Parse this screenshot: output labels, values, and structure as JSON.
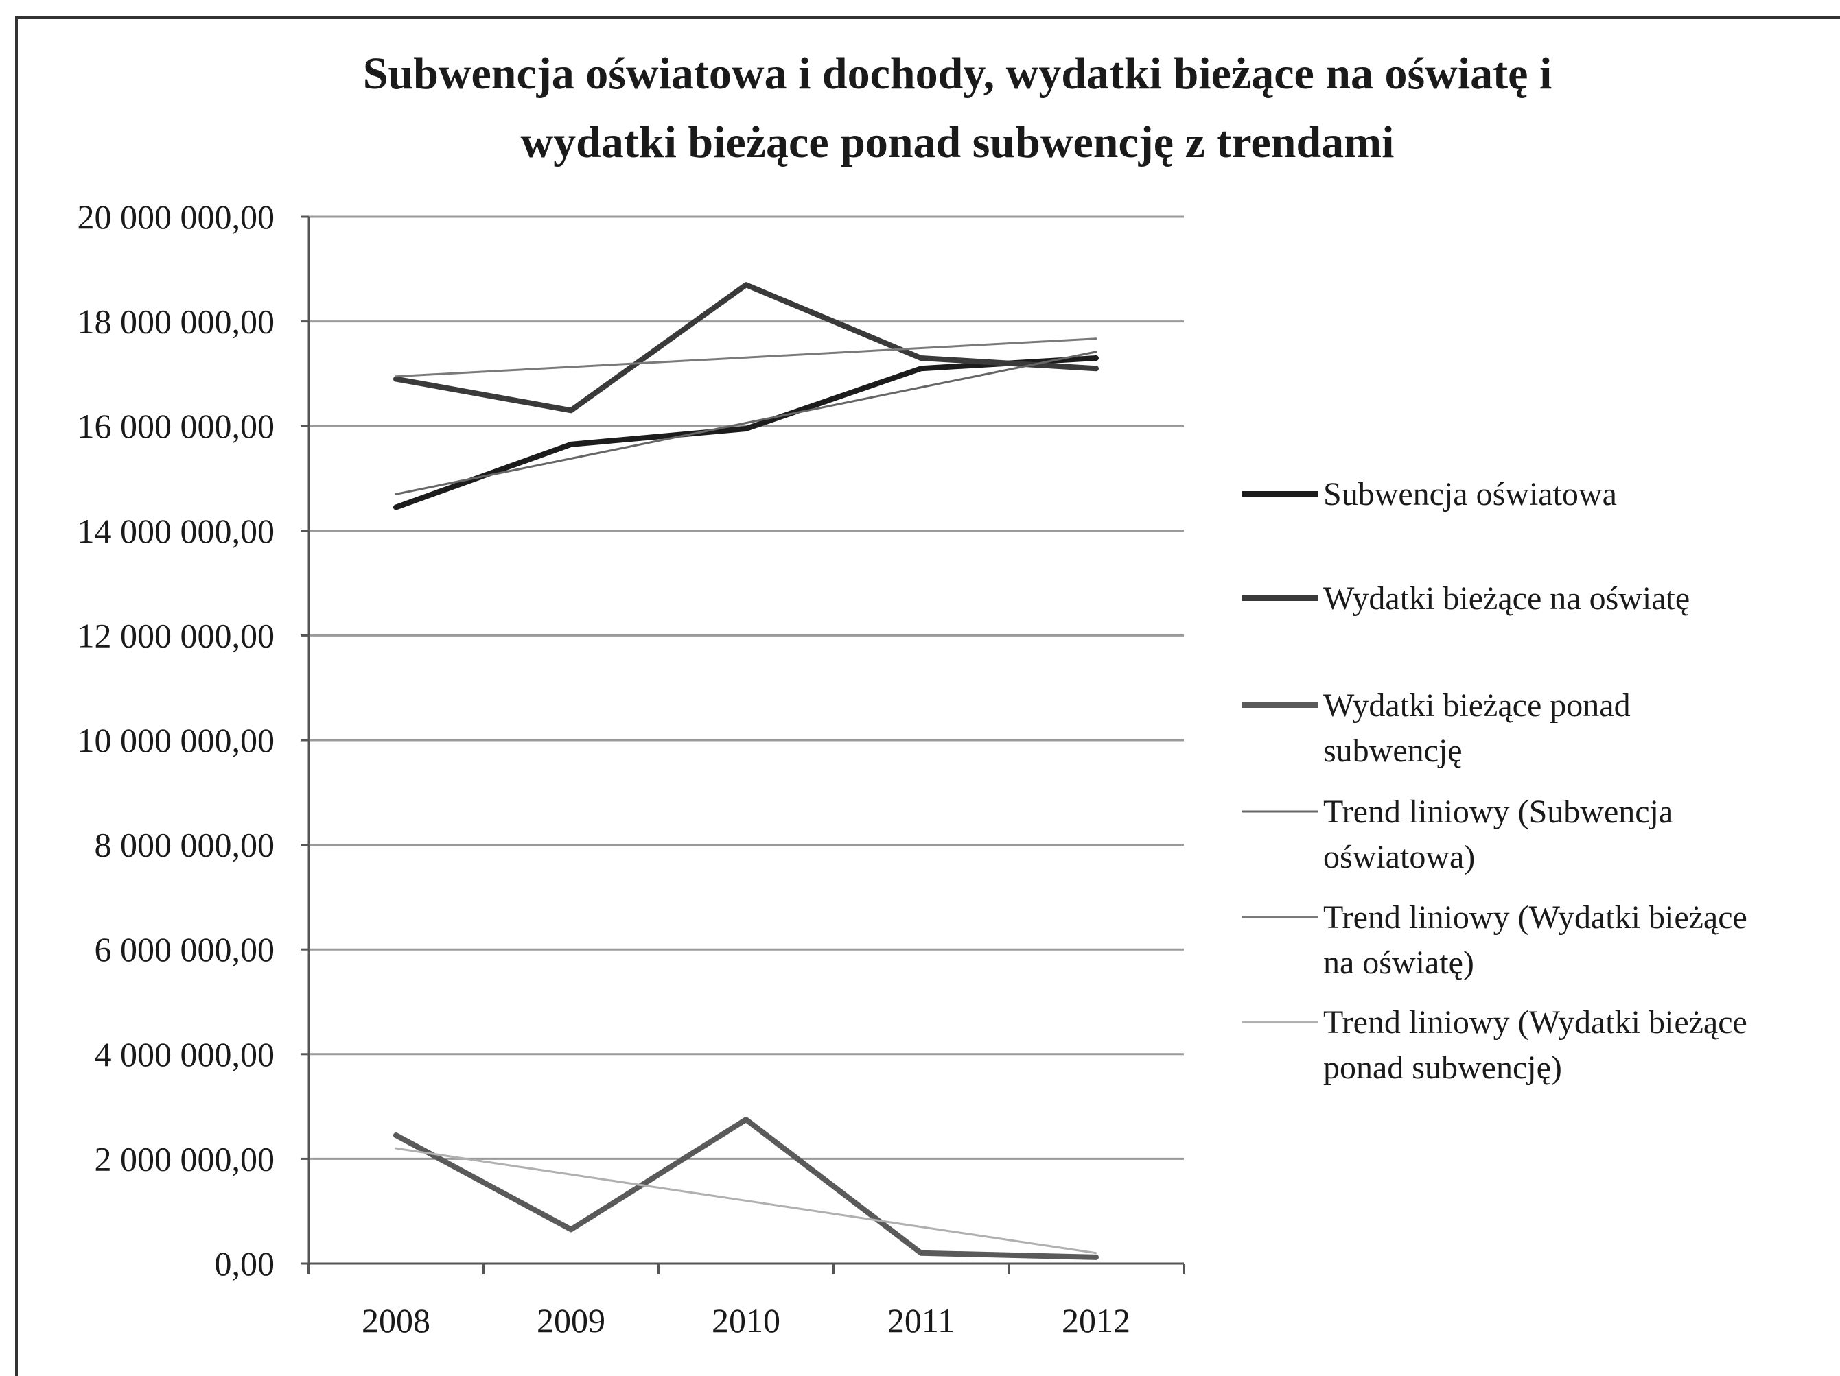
{
  "chart_data": {
    "type": "line",
    "title_lines": [
      "Subwencja oświatowa i dochody, wydatki bieżące na oświatę i",
      "wydatki bieżące ponad subwencję z trendami"
    ],
    "categories": [
      "2008",
      "2009",
      "2010",
      "2011",
      "2012"
    ],
    "ylim": [
      0,
      20000000
    ],
    "y_ticks": [
      {
        "value": 0,
        "label": "0,00"
      },
      {
        "value": 2000000,
        "label": "2 000 000,00"
      },
      {
        "value": 4000000,
        "label": "4 000 000,00"
      },
      {
        "value": 6000000,
        "label": "6 000 000,00"
      },
      {
        "value": 8000000,
        "label": "8 000 000,00"
      },
      {
        "value": 10000000,
        "label": "10 000 000,00"
      },
      {
        "value": 12000000,
        "label": "12 000 000,00"
      },
      {
        "value": 14000000,
        "label": "14 000 000,00"
      },
      {
        "value": 16000000,
        "label": "16 000 000,00"
      },
      {
        "value": 18000000,
        "label": "18 000 000,00"
      },
      {
        "value": 20000000,
        "label": "20 000 000,00"
      }
    ],
    "grid": true,
    "legend_position": "right",
    "series": [
      {
        "name": "Subwencja oświatowa",
        "values": [
          14450000,
          15650000,
          15950000,
          17100000,
          17300000
        ],
        "color": "#1c1c1c",
        "kind": "data",
        "legend_lines": [
          "Subwencja oświatowa"
        ]
      },
      {
        "name": "Wydatki bieżące na oświatę",
        "values": [
          16900000,
          16300000,
          18700000,
          17300000,
          17100000
        ],
        "color": "#3a3a3a",
        "kind": "data",
        "legend_lines": [
          "Wydatki bieżące na oświatę"
        ]
      },
      {
        "name": "Wydatki bieżące ponad subwencję",
        "values": [
          2450000,
          650000,
          2750000,
          200000,
          120000
        ],
        "color": "#5a5a5a",
        "kind": "data",
        "legend_lines": [
          "Wydatki bieżące ponad",
          "subwencję"
        ]
      },
      {
        "name": "Trend liniowy (Subwencja oświatowa)",
        "values": [
          14700000,
          15380000,
          16060000,
          16740000,
          17420000
        ],
        "color": "#666666",
        "kind": "trend",
        "legend_lines": [
          "Trend liniowy (Subwencja",
          "oświatowa)"
        ]
      },
      {
        "name": "Trend liniowy (Wydatki bieżące na oświatę)",
        "values": [
          16950000,
          17130000,
          17310000,
          17490000,
          17670000
        ],
        "color": "#7a7a7a",
        "kind": "trend",
        "legend_lines": [
          "Trend liniowy (Wydatki bieżące",
          "na oświatę)"
        ]
      },
      {
        "name": "Trend liniowy (Wydatki bieżące ponad subwencję)",
        "values": [
          2200000,
          1700000,
          1200000,
          700000,
          200000
        ],
        "color": "#b0b0b0",
        "kind": "trend",
        "legend_lines": [
          "Trend liniowy (Wydatki bieżące",
          "ponad subwencję)"
        ]
      }
    ]
  }
}
